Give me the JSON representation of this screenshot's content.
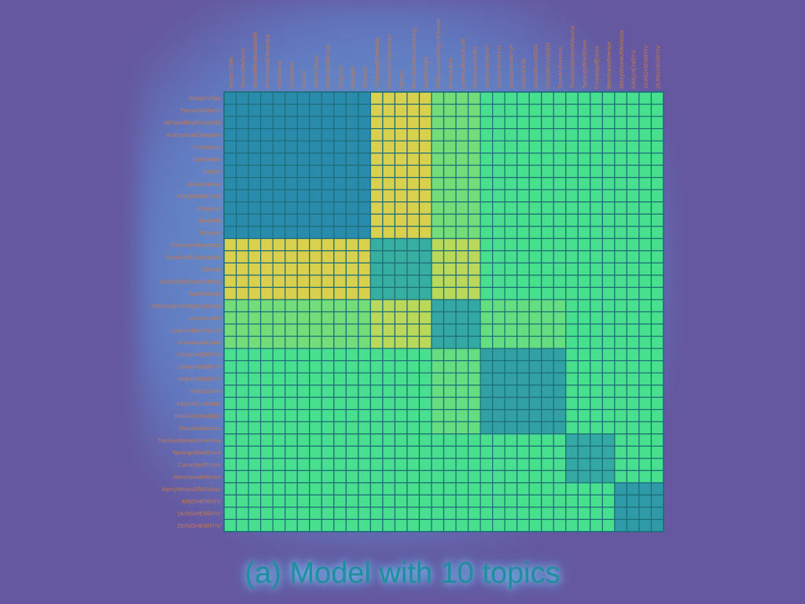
{
  "caption": "(a) Model with 10 topics",
  "chart_data": {
    "type": "heatmap",
    "labels": [
      "Winter'sTale",
      "TimonOfAthens",
      "All'sWellthatEndsWell",
      "AntonyAndCleopatra",
      "Coriolanus",
      "Cymbeline",
      "Hamlet",
      "JuliusCaesar",
      "KINGHENRYVIII",
      "KingLear",
      "Macbeth",
      "Tempest",
      "TroilusandCressida",
      "MeasureForMeasure",
      "Othello",
      "MuchAdoAboutNothing",
      "TwelfthNight",
      "AMidsummerNight'sDream",
      "AsYouLikeIt",
      "Love'sLabour'sLost",
      "RomeoandJuliet",
      "1KINGHENRYVI",
      "2KINGHENRYVI",
      "3KINGHENRYVI",
      "KINGJOHN",
      "KINGRICHARDII",
      "KINGRICHARDIII",
      "TitusAndronicus",
      "TwoGentlemenofVerona",
      "TamingoftheShrew",
      "ComedyofErrors",
      "MerchantofVenice",
      "MerryWivesOfWindsor",
      "KINGHENRYV",
      "1KINGHENRYIV",
      "2KINGHENRYIV"
    ],
    "blocks": [
      {
        "start": 0,
        "end": 11,
        "level": 0.0
      },
      {
        "start": 12,
        "end": 16,
        "level": 0.25
      },
      {
        "start": 17,
        "end": 20,
        "level": 0.2
      },
      {
        "start": 21,
        "end": 27,
        "level": 0.15
      },
      {
        "start": 28,
        "end": 31,
        "level": 0.2
      },
      {
        "start": 32,
        "end": 35,
        "level": 0.1
      }
    ],
    "background_level": 0.6,
    "colors": {
      "low": "#2a8cad",
      "mid": "#48e08e",
      "high": "#d6d64c",
      "hot": "#f09a58",
      "grid": "#1e6e78"
    }
  }
}
